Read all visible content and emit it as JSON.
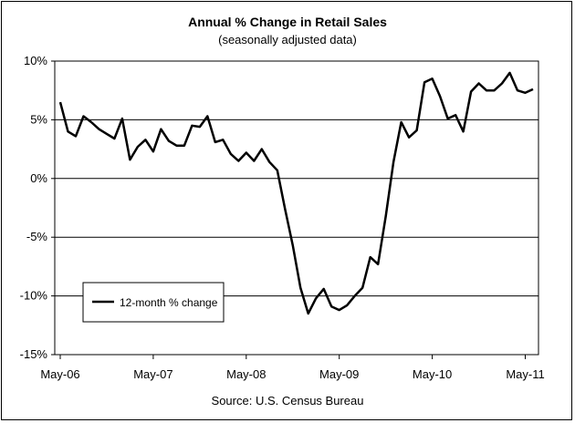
{
  "chart_data": {
    "type": "line",
    "title": "Annual %  Change in Retail Sales",
    "subtitle": "(seasonally adjusted data)",
    "source": "Source: U.S. Census Bureau",
    "ylim": [
      -15,
      10
    ],
    "y_ticks": [
      10,
      5,
      0,
      -5,
      -10,
      -15
    ],
    "y_tick_labels": [
      "10%",
      "5%",
      "0%",
      "-5%",
      "-10%",
      "-15%"
    ],
    "x_tick_labels": [
      "May-06",
      "May-07",
      "May-08",
      "May-09",
      "May-10",
      "May-11"
    ],
    "x_tick_index": [
      0,
      12,
      24,
      36,
      48,
      60
    ],
    "grid": "horizontal",
    "legend_position": "bottom-left",
    "line_color": "#000000",
    "series": [
      {
        "name": "12-month % change",
        "values": [
          6.5,
          4.0,
          3.6,
          5.3,
          4.8,
          4.2,
          3.8,
          3.4,
          5.1,
          1.6,
          2.7,
          3.3,
          2.3,
          4.2,
          3.2,
          2.8,
          2.8,
          4.5,
          4.4,
          5.3,
          3.1,
          3.3,
          2.1,
          1.5,
          2.2,
          1.5,
          2.5,
          1.4,
          0.7,
          -2.6,
          -5.7,
          -9.3,
          -11.5,
          -10.2,
          -9.4,
          -10.9,
          -11.2,
          -10.8,
          -10.0,
          -9.3,
          -6.7,
          -7.3,
          -3.2,
          1.4,
          4.8,
          3.5,
          4.1,
          8.2,
          8.5,
          7.0,
          5.1,
          5.4,
          4.0,
          7.4,
          8.1,
          7.5,
          7.5,
          8.1,
          9.0,
          7.5,
          7.3,
          7.6
        ]
      }
    ]
  }
}
